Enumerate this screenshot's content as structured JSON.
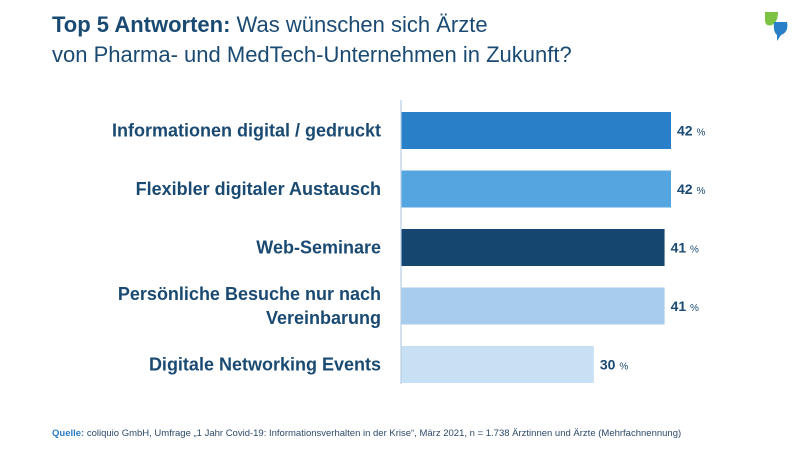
{
  "header": {
    "title_bold": "Top 5 Antworten:",
    "title_line1": "Was wünschen sich Ärzte",
    "title_line2": "von Pharma- und MedTech-Unternehmen in Zukunft?"
  },
  "footer": {
    "source_label": "Quelle:",
    "source_text": "coliquio GmbH, Umfrage „1 Jahr Covid-19: Informationsverhalten in der Krise“, März 2021, n = 1.738 Ärztinnen und Ärzte (Mehrfachnennung)"
  },
  "chart_data": {
    "type": "bar",
    "orientation": "horizontal",
    "title": "Top 5 Antworten: Was wünschen sich Ärzte von Pharma- und MedTech-Unternehmen in Zukunft?",
    "xlabel": "",
    "ylabel": "",
    "unit": "%",
    "xlim": [
      0,
      42
    ],
    "categories": [
      [
        "Informationen digital / gedruckt"
      ],
      [
        "Flexibler digitaler Austausch"
      ],
      [
        "Web-Seminare"
      ],
      [
        "Persönliche Besuche nur nach",
        "Vereinbarung"
      ],
      [
        "Digitale Networking Events"
      ]
    ],
    "values": [
      42,
      42,
      41,
      41,
      30
    ],
    "colors": [
      "#2a80c8",
      "#55a6e0",
      "#15466f",
      "#a8cdec",
      "#c8e0f4"
    ],
    "axis_color": "#b7cfe4"
  }
}
